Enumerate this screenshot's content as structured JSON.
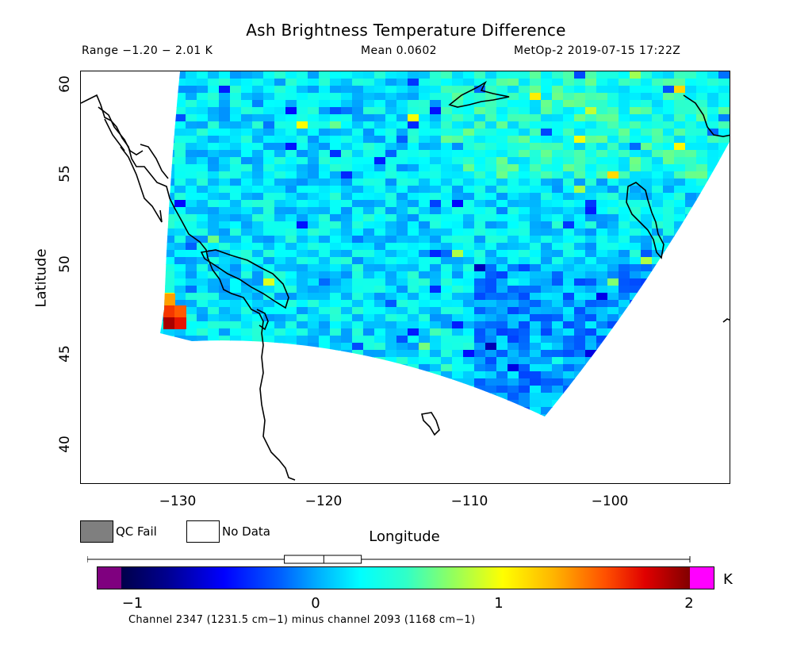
{
  "title": "Ash Brightness Temperature Difference",
  "range_text": "Range −1.20 − 2.01 K",
  "mean_text": "Mean 0.0602",
  "platform_text": "MetOp-2 2019-07-15 17:22Z",
  "y_axis": {
    "label": "Latitude",
    "ticks": [
      "60",
      "55",
      "50",
      "45",
      "40"
    ],
    "range": [
      37.6,
      60.6
    ]
  },
  "x_axis": {
    "label": "Longitude",
    "ticks": [
      "−130",
      "−120",
      "−110",
      "−100"
    ],
    "range": [
      -136.2,
      -91.9
    ]
  },
  "legend": {
    "qc_fail": "QC Fail",
    "no_data": "No Data",
    "qc_fail_color": "#7f7f7f"
  },
  "colorbar": {
    "ticks": [
      "−1",
      "0",
      "1",
      "2"
    ],
    "range": [
      -1.2,
      2.01
    ],
    "unit": "K",
    "under_color": "#7f007f",
    "over_color": "#ff00ff",
    "boxplot": {
      "min": -1.2,
      "q1": -0.15,
      "median": 0.06,
      "q3": 0.26,
      "max": 2.01
    }
  },
  "footnote": "Channel 2347 (1231.5 cm−1) minus channel 2093 (1168 cm−1)",
  "map": {
    "grid": false,
    "swath_base_value": 0.1,
    "hot_spot_value": 1.9
  }
}
